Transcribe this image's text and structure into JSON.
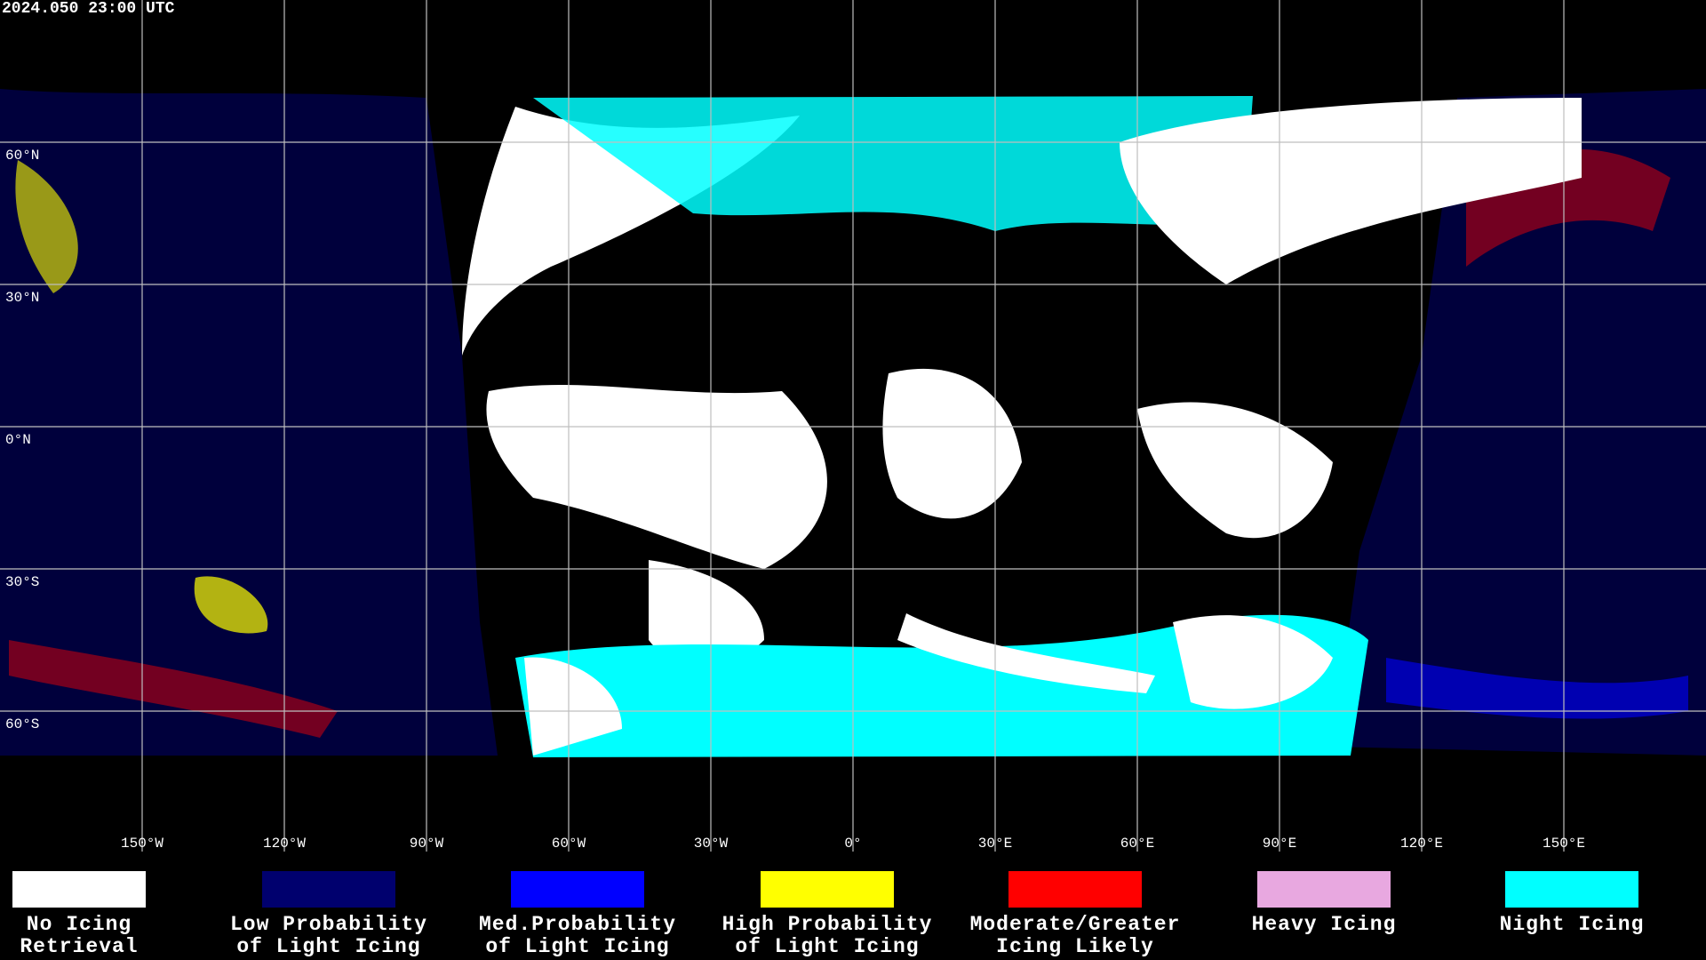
{
  "header": {
    "timestamp": "2024.050 23:00 UTC"
  },
  "map": {
    "lat_labels": [
      "60°N",
      "30°N",
      "0°N",
      "30°S",
      "60°S"
    ],
    "lon_labels": [
      "150°W",
      "120°W",
      "90°W",
      "60°W",
      "30°W",
      "0°",
      "30°E",
      "60°E",
      "90°E",
      "120°E",
      "150°E"
    ]
  },
  "legend": [
    {
      "label": [
        "No Icing",
        "Retrieval"
      ],
      "color": "#ffffff"
    },
    {
      "label": [
        "Low Probability",
        "of Light Icing"
      ],
      "color": "#00006e"
    },
    {
      "label": [
        "Med.Probability",
        "of Light Icing"
      ],
      "color": "#0000ff"
    },
    {
      "label": [
        "High Probability",
        "of Light Icing"
      ],
      "color": "#ffff00"
    },
    {
      "label": [
        "Moderate/Greater",
        "Icing Likely"
      ],
      "color": "#ff0000"
    },
    {
      "label": [
        "Heavy Icing"
      ],
      "color": "#e8a8e0"
    },
    {
      "label": [
        "Night Icing"
      ],
      "color": "#00ffff"
    }
  ]
}
